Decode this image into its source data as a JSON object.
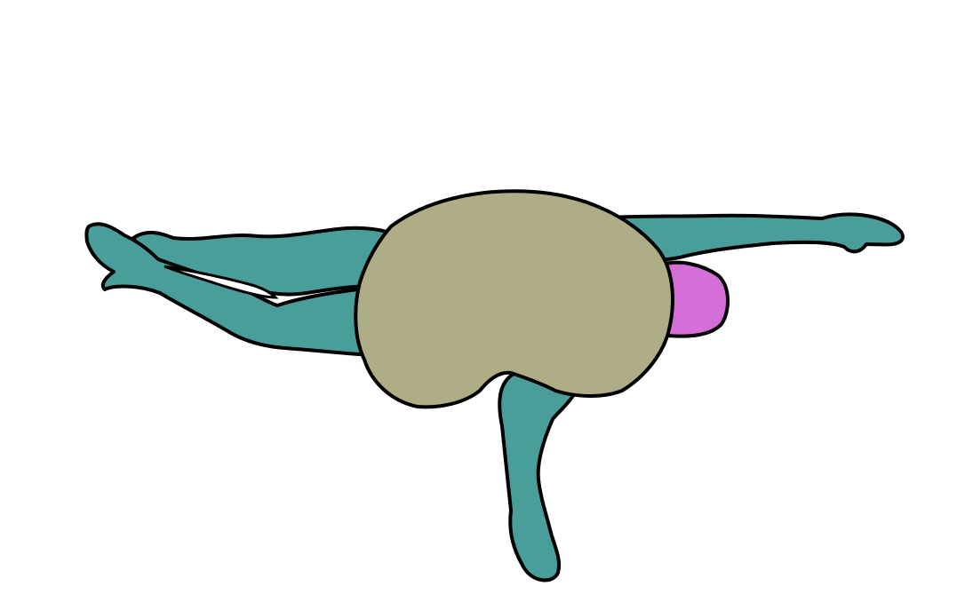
{
  "scene": {
    "description_free": true,
    "colors": {
      "background": "#ffffff",
      "limbs": "#4a9e9a",
      "torso": "#aead86",
      "head_cap": "#d56fd8",
      "outline": "#000000"
    },
    "parts": [
      "left-leg",
      "right-leg",
      "left-arm",
      "right-arm",
      "torso",
      "head-cap"
    ]
  }
}
